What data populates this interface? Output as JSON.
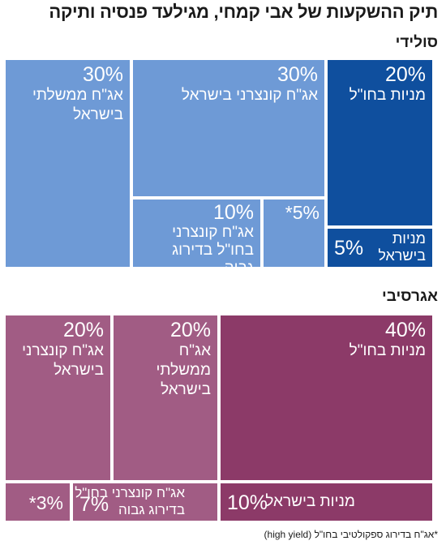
{
  "title": "תיק ההשקעות של אבי קמחי, מגילעד פנסיה ותיקה",
  "footnote": "*אג\"ח בדירוג ספקולטיבי בחו\"ל (high yield)",
  "colors": {
    "solid_light": "#6e9ad6",
    "solid_dark": "#0f4f9e",
    "aggr_light": "#a15c84",
    "aggr_dark": "#8c3a68"
  },
  "chart_data": [
    {
      "type": "treemap",
      "title": "סולידי",
      "items": [
        {
          "label": "אג\"ח ממשלתי בישראל",
          "value": 30,
          "value_label": "30%"
        },
        {
          "label": "אג\"ח קונצרני בישראל",
          "value": 30,
          "value_label": "30%"
        },
        {
          "label": "מניות בחו\"ל",
          "value": 20,
          "value_label": "20%"
        },
        {
          "label": "אג\"ח קונצרני בחו\"ל בדירוג גבוה",
          "value": 10,
          "value_label": "10%"
        },
        {
          "label": "",
          "value": 5,
          "value_label": "*5%"
        },
        {
          "label": "מניות בישראל",
          "value": 5,
          "value_label": "5%"
        }
      ]
    },
    {
      "type": "treemap",
      "title": "אגרסיבי",
      "items": [
        {
          "label": "אג\"ח קונצרני בישראל",
          "value": 20,
          "value_label": "20%"
        },
        {
          "label": "אג\"ח ממשלתי בישראל",
          "value": 20,
          "value_label": "20%"
        },
        {
          "label": "מניות בחו\"ל",
          "value": 40,
          "value_label": "40%"
        },
        {
          "label": "",
          "value": 3,
          "value_label": "*3%"
        },
        {
          "label": "אג\"ח קונצרני בחו\"ל בדירוג גבוה",
          "value": 7,
          "value_label": "7%"
        },
        {
          "label": "מניות בישראל",
          "value": 10,
          "value_label": "10%"
        }
      ]
    }
  ]
}
